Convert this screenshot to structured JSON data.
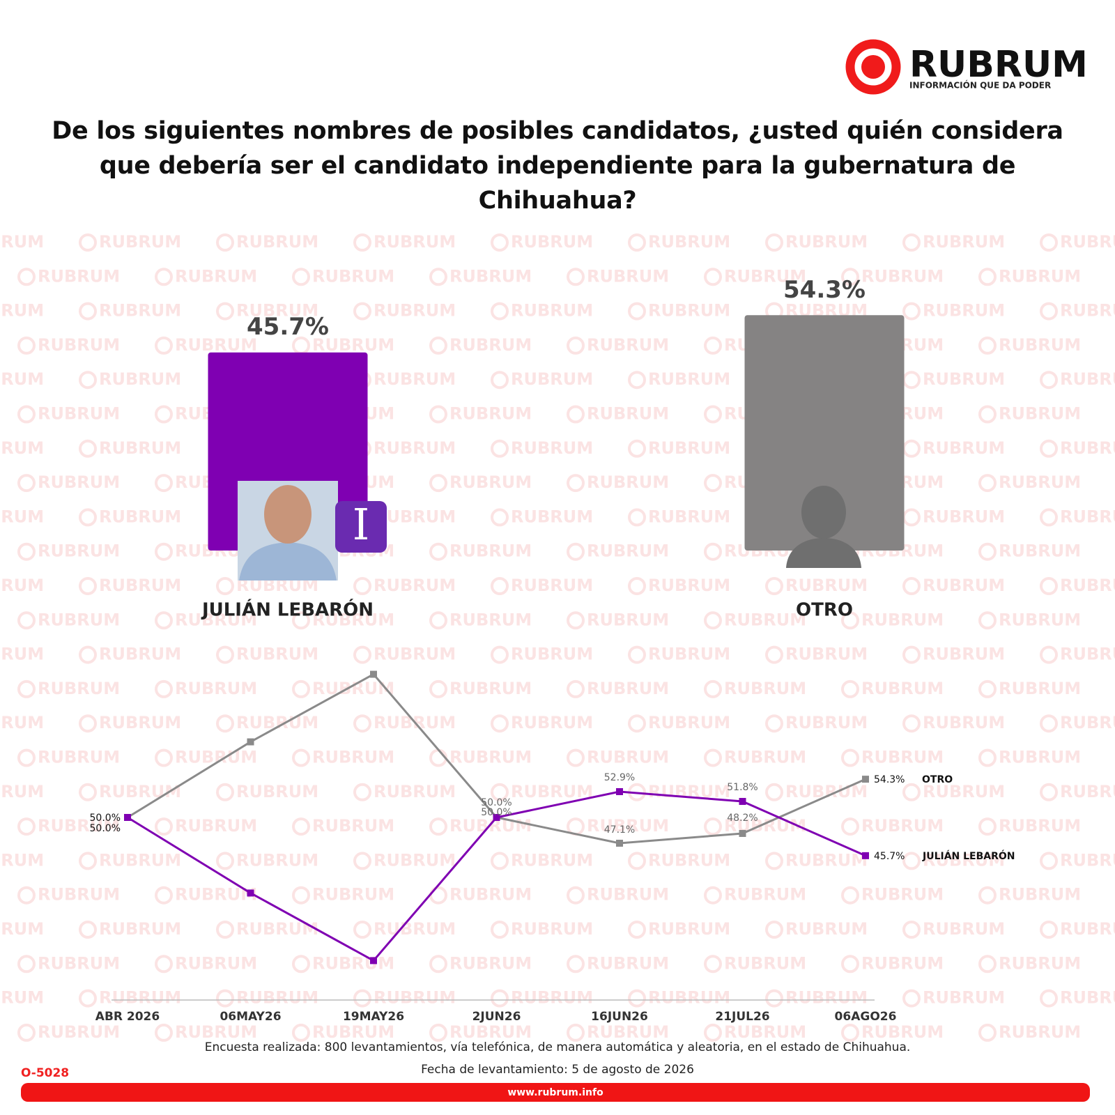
{
  "brand": {
    "name": "RUBRUM",
    "tagline": "INFORMACIÓN QUE DA PODER"
  },
  "chart_data": [
    {
      "type": "bar",
      "title": "De los siguientes nombres de posibles candidatos, ¿usted quién considera que debería ser el candidato independiente para la gubernatura de Chihuahua?",
      "categories": [
        "JULIÁN LEBARÓN",
        "OTRO"
      ],
      "values": [
        45.7,
        54.3
      ],
      "value_labels": [
        "45.7%",
        "54.3%"
      ],
      "colors": [
        "#7f00b2",
        "#858383"
      ],
      "badge": "I"
    },
    {
      "type": "line",
      "categories": [
        "ABR 2026",
        "06MAY26",
        "19MAY26",
        "2JUN26",
        "16JUN26",
        "21JUL26",
        "06AGO26"
      ],
      "series": [
        {
          "name": "OTRO",
          "color": "#8a8a8a",
          "values": [
            50.0,
            58.5,
            66.1,
            50.0,
            47.1,
            48.2,
            54.3
          ],
          "value_labels": [
            "50.0%",
            null,
            null,
            "50.0%",
            "47.1%",
            "48.2%",
            "54.3%"
          ]
        },
        {
          "name": "JULIÁN LEBARÓN",
          "color": "#7f00b2",
          "values": [
            50.0,
            41.5,
            33.9,
            50.0,
            52.9,
            51.8,
            45.7
          ],
          "value_labels": [
            "50.0%",
            null,
            null,
            "50.0%",
            "52.9%",
            "51.8%",
            "45.7%"
          ]
        }
      ]
    }
  ],
  "footer": {
    "method": "Encuesta realizada: 800 levantamientos, vía telefónica, de manera automática y aleatoria, en el estado de Chihuahua.",
    "date": "Fecha de levantamiento: 5 de agosto de 2026",
    "code": "O-5028",
    "url": "www.rubrum.info"
  }
}
